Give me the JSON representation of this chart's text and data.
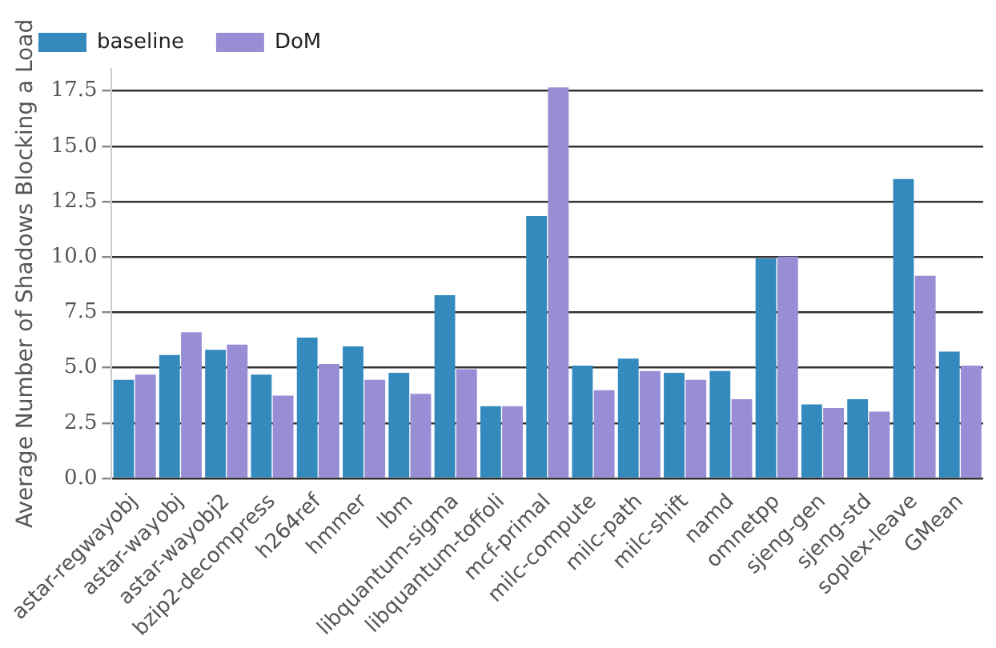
{
  "chart_data": {
    "type": "bar",
    "ylabel": "Average Number of Shadows Blocking a Load",
    "categories": [
      "astar-regwayobj",
      "astar-wayobj",
      "astar-wayobj2",
      "bzip2-decompress",
      "h264ref",
      "hmmer",
      "lbm",
      "libquantum-sigma",
      "libquantum-toffoli",
      "mcf-primal",
      "milc-compute",
      "milc-path",
      "milc-shift",
      "namd",
      "omnetpp",
      "sjeng-gen",
      "sjeng-std",
      "soplex-leave",
      "GMean"
    ],
    "series": [
      {
        "name": "baseline",
        "color": "#348abd",
        "values": [
          4.45,
          5.57,
          5.81,
          4.69,
          6.36,
          5.96,
          4.77,
          8.27,
          3.26,
          11.85,
          5.09,
          5.41,
          4.77,
          4.85,
          9.94,
          3.34,
          3.58,
          13.52,
          5.73
        ]
      },
      {
        "name": "DoM",
        "color": "#988ed5",
        "values": [
          4.69,
          6.6,
          6.04,
          3.74,
          5.17,
          4.45,
          3.82,
          4.93,
          3.26,
          17.66,
          3.98,
          4.85,
          4.45,
          3.58,
          10.02,
          3.18,
          3.02,
          9.15,
          5.09
        ]
      }
    ],
    "ylim": [
      0,
      18.5
    ],
    "yticks": [
      {
        "value": 0,
        "label": "0.0"
      },
      {
        "value": 2.5,
        "label": "2.5"
      },
      {
        "value": 5,
        "label": "5.0"
      },
      {
        "value": 7.5,
        "label": "7.5"
      },
      {
        "value": 10,
        "label": "10.0"
      },
      {
        "value": 12.5,
        "label": "12.5"
      },
      {
        "value": 15,
        "label": "15.0"
      },
      {
        "value": 17.5,
        "label": "17.5"
      }
    ],
    "grid": "y",
    "legend": "top left"
  }
}
